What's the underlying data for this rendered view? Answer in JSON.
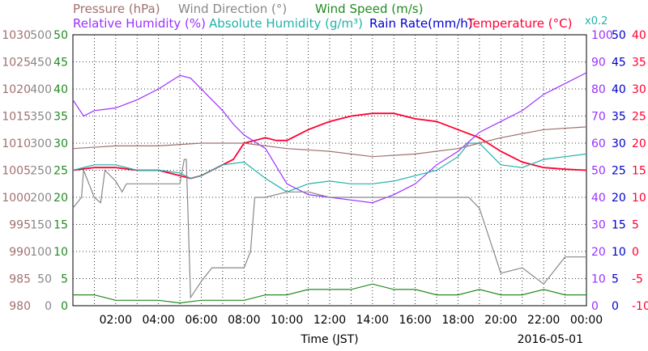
{
  "chart_data": {
    "type": "line",
    "legend": {
      "row1": [
        {
          "text": "Pressure (hPa)",
          "color": "#a07070"
        },
        {
          "text": "Wind Direction (°)",
          "color": "#888888"
        },
        {
          "text": "Wind Speed (m/s)",
          "color": "#228b22"
        }
      ],
      "row2": [
        {
          "text": "Relative Humidity (%)",
          "color": "#9b30ff"
        },
        {
          "text": "Absolute Humidity (g/m³)",
          "color": "#20b2aa"
        },
        {
          "text": "Rain Rate(mm/h)",
          "color": "#0000cd"
        },
        {
          "text": "Temperature (°C)",
          "color": "#ff0033"
        }
      ],
      "multiplier": {
        "text": "x0.2",
        "color": "#20b2aa"
      }
    },
    "xlabel": "Time (JST)",
    "date_label": "2016-05-01",
    "x_ticks": [
      "02:00",
      "04:00",
      "06:00",
      "08:00",
      "10:00",
      "12:00",
      "14:00",
      "16:00",
      "18:00",
      "20:00",
      "22:00",
      "00:00"
    ],
    "axes": {
      "pressure": {
        "ticks": [
          "980",
          "985",
          "990",
          "995",
          "1000",
          "1005",
          "1010",
          "1015",
          "1020",
          "1025",
          "1030"
        ],
        "color": "#a07070"
      },
      "wind_dir": {
        "ticks": [
          "0",
          "50",
          "100",
          "150",
          "200",
          "250",
          "300",
          "350",
          "400",
          "450",
          "500"
        ],
        "color": "#888888"
      },
      "wind_speed": {
        "ticks": [
          "0",
          "5",
          "10",
          "15",
          "20",
          "25",
          "30",
          "35",
          "40",
          "45",
          "50"
        ],
        "color": "#228b22"
      },
      "humidity": {
        "ticks": [
          "0",
          "10",
          "20",
          "30",
          "40",
          "50",
          "60",
          "70",
          "80",
          "90",
          "100"
        ],
        "color": "#9b30ff"
      },
      "rain": {
        "ticks": [
          "0",
          "5",
          "10",
          "15",
          "20",
          "25",
          "30",
          "35",
          "40",
          "45",
          "50"
        ],
        "color": "#0000cd"
      },
      "temperature": {
        "ticks": [
          "-10",
          "-5",
          "0",
          "5",
          "10",
          "15",
          "20",
          "25",
          "30",
          "35",
          "40"
        ],
        "color": "#ff0033"
      }
    },
    "x_range_hours": [
      0,
      24
    ],
    "series": [
      {
        "name": "Temperature (°C)",
        "color": "#ff0033",
        "axis": "temperature",
        "ylim": [
          -10,
          40
        ],
        "x": [
          0,
          1,
          2,
          3,
          4,
          5,
          5.5,
          6,
          7,
          7.5,
          8,
          9,
          9.5,
          10,
          11,
          12,
          13,
          14,
          15,
          16,
          17,
          18,
          19,
          20,
          21,
          22,
          23,
          24
        ],
        "y": [
          15,
          15.5,
          15.5,
          15,
          15,
          14,
          13.5,
          14,
          16,
          17,
          20,
          21,
          20.5,
          20.5,
          22.5,
          24,
          25,
          25.5,
          25.5,
          24.5,
          24,
          22.5,
          21,
          18.5,
          16.5,
          15.5,
          15.2,
          15
        ]
      },
      {
        "name": "Relative Humidity (%)",
        "color": "#9b30ff",
        "axis": "humidity",
        "ylim": [
          0,
          100
        ],
        "x": [
          0,
          0.5,
          1,
          2,
          3,
          4,
          5,
          5.5,
          6,
          7,
          7.5,
          8,
          9,
          10,
          11,
          12,
          13,
          14,
          15,
          16,
          17,
          18,
          19,
          20,
          21,
          22,
          23,
          24
        ],
        "y": [
          76,
          70,
          72,
          73,
          76,
          80,
          85,
          84,
          80,
          72,
          67,
          63,
          58,
          45,
          41,
          40,
          39,
          38,
          41,
          45,
          52,
          57,
          64,
          68,
          72,
          78,
          82,
          86
        ]
      },
      {
        "name": "Absolute Humidity (g/m³)",
        "color": "#20b2aa",
        "axis": "humidity",
        "ylim": [
          0,
          100
        ],
        "x": [
          0,
          1,
          2,
          3,
          4,
          5,
          5.5,
          6,
          7,
          8,
          8.5,
          9,
          10,
          11,
          12,
          13,
          14,
          15,
          16,
          17,
          18,
          18.5,
          19,
          20,
          21,
          22,
          23,
          24
        ],
        "y": [
          50,
          52,
          52,
          50,
          50,
          49,
          47,
          48,
          52,
          53,
          50,
          47,
          42,
          45,
          46,
          45,
          45,
          46,
          48,
          50,
          55,
          60,
          60,
          52,
          51,
          54,
          55,
          56
        ]
      },
      {
        "name": "Pressure (hPa)",
        "color": "#a07070",
        "axis": "pressure",
        "ylim": [
          980,
          1030
        ],
        "x": [
          0,
          2,
          4,
          6,
          8,
          10,
          12,
          14,
          16,
          18,
          19,
          20,
          22,
          24
        ],
        "y": [
          1009,
          1009.5,
          1009.5,
          1010,
          1010,
          1009,
          1008.5,
          1007.5,
          1008,
          1009,
          1010,
          1011,
          1012.5,
          1013
        ]
      },
      {
        "name": "Wind Direction (°)",
        "color": "#888888",
        "axis": "wind_dir",
        "ylim": [
          0,
          500
        ],
        "x": [
          0,
          0.4,
          0.5,
          1,
          1.3,
          1.5,
          2,
          2.3,
          2.5,
          3,
          4,
          5,
          5.2,
          5.3,
          5.5,
          6,
          6.5,
          7,
          7.5,
          8,
          8.3,
          8.5,
          9,
          10,
          11,
          12,
          13,
          14,
          15,
          16,
          17,
          17.5,
          18,
          18.5,
          19,
          20,
          21,
          22,
          23,
          24
        ],
        "y": [
          180,
          200,
          250,
          200,
          190,
          250,
          230,
          210,
          225,
          225,
          225,
          225,
          270,
          270,
          15,
          45,
          70,
          70,
          70,
          70,
          100,
          200,
          200,
          210,
          210,
          200,
          200,
          200,
          200,
          200,
          200,
          200,
          200,
          200,
          180,
          60,
          70,
          40,
          90,
          90
        ]
      },
      {
        "name": "Wind Speed (m/s)",
        "color": "#228b22",
        "axis": "wind_speed",
        "ylim": [
          0,
          50
        ],
        "x": [
          0,
          1,
          2,
          3,
          4,
          5,
          6,
          7,
          8,
          9,
          10,
          11,
          12,
          13,
          14,
          15,
          16,
          17,
          18,
          19,
          20,
          21,
          22,
          23,
          24
        ],
        "y": [
          2,
          2,
          1,
          1,
          1,
          0.5,
          1,
          1,
          1,
          2,
          2,
          3,
          3,
          3,
          4,
          3,
          3,
          2,
          2,
          3,
          2,
          2,
          3,
          2,
          2
        ]
      }
    ]
  }
}
